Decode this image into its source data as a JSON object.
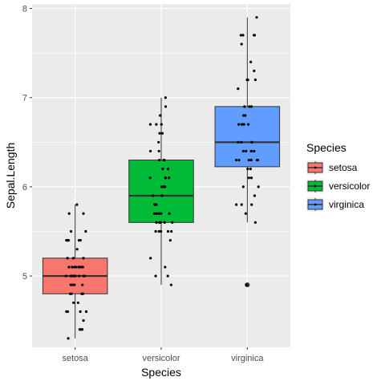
{
  "chart_data": {
    "type": "boxplot",
    "xlabel": "Species",
    "ylabel": "Sepal.Length",
    "categories": [
      "setosa",
      "versicolor",
      "virginica"
    ],
    "ylim": [
      4.2,
      8.05
    ],
    "yticks": [
      5,
      6,
      7,
      8
    ],
    "grid": true,
    "legend": {
      "title": "Species",
      "placement": "right",
      "entries": [
        {
          "label": "setosa",
          "color": "#F8766D"
        },
        {
          "label": "versicolor",
          "color": "#00BA38"
        },
        {
          "label": "virginica",
          "color": "#619CFF"
        }
      ]
    },
    "boxes": [
      {
        "category": "setosa",
        "color": "#F8766D",
        "q1": 4.8,
        "median": 5.0,
        "q3": 5.2,
        "whisker_low": 4.3,
        "whisker_high": 5.8,
        "outliers": []
      },
      {
        "category": "versicolor",
        "color": "#00BA38",
        "q1": 5.6,
        "median": 5.9,
        "q3": 6.3,
        "whisker_low": 4.9,
        "whisker_high": 7.0,
        "outliers": []
      },
      {
        "category": "virginica",
        "color": "#619CFF",
        "q1": 6.225,
        "median": 6.5,
        "q3": 6.9,
        "whisker_low": 5.6,
        "whisker_high": 7.9,
        "outliers": [
          4.9
        ]
      }
    ],
    "points": [
      {
        "category": "setosa",
        "values": [
          5.1,
          4.9,
          4.7,
          4.6,
          5.0,
          5.4,
          4.6,
          5.0,
          4.4,
          4.9,
          5.4,
          4.8,
          4.8,
          4.3,
          5.8,
          5.7,
          5.4,
          5.1,
          5.7,
          5.1,
          5.4,
          5.1,
          4.6,
          5.1,
          4.8,
          5.0,
          5.0,
          5.2,
          5.2,
          4.7,
          4.8,
          5.4,
          5.2,
          5.5,
          4.9,
          5.0,
          5.5,
          4.9,
          4.4,
          5.1,
          5.0,
          4.5,
          4.4,
          5.0,
          5.1,
          4.8,
          5.1,
          4.6,
          5.3,
          5.0
        ]
      },
      {
        "category": "versicolor",
        "values": [
          7.0,
          6.4,
          6.9,
          5.5,
          6.5,
          5.7,
          6.3,
          4.9,
          6.6,
          5.2,
          5.0,
          5.9,
          6.0,
          6.1,
          5.6,
          6.7,
          5.6,
          5.8,
          6.2,
          5.6,
          5.9,
          6.1,
          6.3,
          6.1,
          6.4,
          6.6,
          6.8,
          6.7,
          6.0,
          5.7,
          5.5,
          5.5,
          5.8,
          6.0,
          5.4,
          6.0,
          6.7,
          6.3,
          5.6,
          5.5,
          5.5,
          6.1,
          5.8,
          5.0,
          5.6,
          5.7,
          5.7,
          6.2,
          5.1,
          5.7
        ]
      },
      {
        "category": "virginica",
        "values": [
          6.3,
          5.8,
          7.1,
          6.3,
          6.5,
          7.6,
          4.9,
          7.3,
          6.7,
          7.2,
          6.5,
          6.4,
          6.8,
          5.7,
          5.8,
          6.4,
          6.5,
          7.7,
          7.7,
          6.0,
          6.9,
          5.6,
          7.7,
          6.3,
          6.7,
          7.2,
          6.2,
          6.1,
          6.4,
          7.2,
          7.4,
          7.9,
          6.4,
          6.3,
          6.1,
          7.7,
          6.3,
          6.4,
          6.0,
          6.9,
          6.7,
          6.9,
          5.8,
          6.8,
          6.7,
          6.7,
          6.3,
          6.5,
          6.2,
          5.9
        ]
      }
    ]
  }
}
